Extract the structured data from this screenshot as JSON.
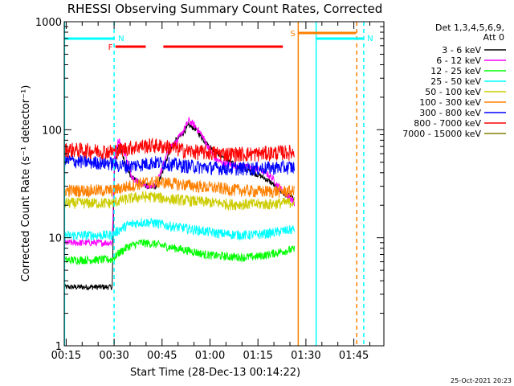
{
  "chart_data": {
    "type": "line",
    "title": "RHESSI Observing Summary Count Rates, Corrected",
    "xlabel": "Start Time (28-Dec-13 00:14:22)",
    "ylabel": "Corrected Count Rate (s⁻¹ detector⁻¹)",
    "footer": "25-Oct-2021 20:23",
    "x_ticks": [
      "00:15",
      "00:30",
      "00:45",
      "01:00",
      "01:15",
      "01:30",
      "01:45"
    ],
    "x_tick_minutes": [
      0.6,
      15.6,
      30.6,
      45.6,
      60.6,
      75.6,
      90.6
    ],
    "xlim_minutes": [
      0,
      100
    ],
    "y_scale": "log",
    "ylim": [
      1,
      1000
    ],
    "y_ticks": [
      "1",
      "10",
      "100",
      "1000"
    ],
    "y_tick_values": [
      1,
      10,
      100,
      1000
    ],
    "legend_header": [
      "Det 1,3,4,5,6,9,",
      "Att 0"
    ],
    "legend_position": "right",
    "series": [
      {
        "name": "3 - 6 keV",
        "color": "#000000",
        "x": [
          0,
          15,
          15.7,
          17,
          19,
          21,
          23,
          25,
          27,
          29,
          31,
          33,
          35,
          37,
          39,
          41,
          43,
          45,
          47,
          49,
          51,
          53,
          55,
          57,
          59,
          61,
          63,
          65,
          67,
          69,
          71,
          72
        ],
        "y": [
          3.5,
          3.5,
          45,
          75,
          50,
          36,
          34,
          31,
          29,
          30,
          42,
          66,
          80,
          92,
          110,
          102,
          85,
          72,
          64,
          58,
          52,
          48,
          44,
          43,
          40,
          38,
          35,
          32,
          28,
          25,
          24,
          22
        ]
      },
      {
        "name": "6 - 12 keV",
        "color": "#ff00ff",
        "x": [
          0,
          15,
          15.7,
          17,
          19,
          21,
          23,
          25,
          27,
          29,
          31,
          33,
          35,
          37,
          39,
          41,
          43,
          45,
          47,
          49,
          51,
          53,
          55,
          57,
          59,
          61,
          63,
          65,
          67,
          69,
          71,
          72
        ],
        "y": [
          9,
          9,
          55,
          82,
          60,
          38,
          33,
          31,
          30,
          32,
          48,
          70,
          76,
          95,
          122,
          108,
          90,
          70,
          55,
          50,
          48,
          47,
          46,
          45,
          44,
          43,
          40,
          36,
          30,
          26,
          23,
          21
        ]
      },
      {
        "name": "12 - 25 keV",
        "color": "#00ff00",
        "x": [
          0,
          15,
          17,
          20,
          24,
          28,
          32,
          36,
          40,
          44,
          48,
          52,
          56,
          60,
          64,
          68,
          72
        ],
        "y": [
          6.2,
          6.3,
          7.2,
          8.3,
          9.0,
          8.8,
          8.3,
          7.9,
          7.5,
          7.0,
          6.8,
          6.7,
          6.6,
          6.7,
          7.0,
          7.5,
          7.8
        ]
      },
      {
        "name": "25 - 50 keV",
        "color": "#00ffff",
        "x": [
          0,
          15,
          17,
          20,
          24,
          28,
          32,
          36,
          40,
          44,
          48,
          52,
          56,
          60,
          64,
          68,
          72
        ],
        "y": [
          10.5,
          10.6,
          11.8,
          13.2,
          14.0,
          13.8,
          13.0,
          12.5,
          12.0,
          11.5,
          11.0,
          10.8,
          10.6,
          10.7,
          11.0,
          11.5,
          12.0
        ]
      },
      {
        "name": "50 - 100 keV",
        "color": "#cccc00",
        "x": [
          0,
          15,
          17,
          20,
          24,
          28,
          32,
          36,
          40,
          44,
          48,
          52,
          56,
          60,
          64,
          68,
          72
        ],
        "y": [
          21,
          21,
          22,
          23,
          24,
          24,
          23,
          22.5,
          22,
          21.5,
          21,
          20.5,
          20.5,
          20.5,
          20.5,
          21,
          21.5
        ]
      },
      {
        "name": "100 - 300 keV",
        "color": "#ff8000",
        "x": [
          0,
          15,
          17,
          20,
          24,
          28,
          32,
          36,
          40,
          44,
          48,
          52,
          56,
          60,
          64,
          68,
          72
        ],
        "y": [
          27.5,
          27.5,
          28.5,
          30,
          32,
          33,
          32.5,
          31.5,
          30.5,
          29.5,
          29,
          28,
          27.5,
          27,
          27,
          27,
          27
        ]
      },
      {
        "name": "300 - 800 keV",
        "color": "#0000ff",
        "x": [
          0,
          15,
          17,
          20,
          24,
          28,
          32,
          36,
          40,
          44,
          48,
          52,
          56,
          60,
          64,
          68,
          72
        ],
        "y": [
          52,
          49,
          47,
          46,
          48,
          50,
          49,
          47,
          46,
          45,
          44.5,
          44,
          44,
          44,
          44.5,
          45,
          45
        ]
      },
      {
        "name": "800 - 7000 keV",
        "color": "#ff0000",
        "x": [
          0,
          15,
          17,
          20,
          24,
          28,
          32,
          36,
          40,
          44,
          48,
          52,
          56,
          60,
          64,
          68,
          72
        ],
        "y": [
          66,
          63,
          65,
          68,
          71,
          72,
          70,
          66,
          63,
          62,
          61,
          60,
          60,
          60,
          61,
          62,
          62
        ]
      },
      {
        "name": "7000 - 15000 keV",
        "color": "#808000",
        "x": [],
        "y": []
      }
    ],
    "flag_bars": [
      {
        "label": "N",
        "color": "#00ffff",
        "start_min": 0,
        "end_min": 15.6,
        "level": "top"
      },
      {
        "label": "N",
        "color": "#00ffff",
        "start_min": 78.8,
        "end_min": 93.5,
        "level": "top"
      },
      {
        "label": "F",
        "color": "#ff0000",
        "start_min": 16.0,
        "end_min": 25.5,
        "level": "second"
      },
      {
        "label": "",
        "color": "#ff0000",
        "start_min": 31.0,
        "end_min": 68.4,
        "level": "second"
      },
      {
        "label": "S",
        "color": "#ff8000",
        "start_min": 73.2,
        "end_min": 91.3,
        "level": "third"
      }
    ],
    "vertical_lines": [
      {
        "minute": 0.1,
        "color": "#00ffff",
        "style": "solid"
      },
      {
        "minute": 15.6,
        "color": "#00ffff",
        "style": "dashed"
      },
      {
        "minute": 73.2,
        "color": "#ff8000",
        "style": "solid"
      },
      {
        "minute": 78.8,
        "color": "#00ffff",
        "style": "solid"
      },
      {
        "minute": 91.5,
        "color": "#ff8000",
        "style": "dashed"
      },
      {
        "minute": 93.7,
        "color": "#00ffff",
        "style": "dashed"
      }
    ]
  }
}
